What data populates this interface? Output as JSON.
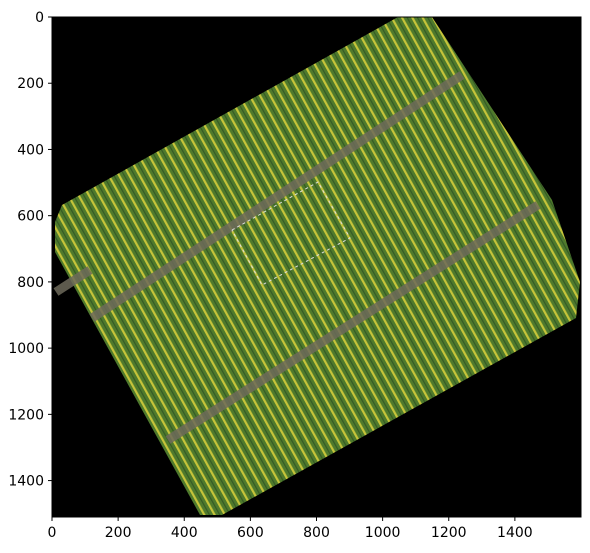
{
  "chart_data": {
    "type": "image",
    "xlim": [
      0,
      1600
    ],
    "ylim": [
      1510,
      0
    ],
    "xticks": [
      0,
      200,
      400,
      600,
      800,
      1000,
      1200,
      1400
    ],
    "yticks": [
      0,
      200,
      400,
      600,
      800,
      1000,
      1200,
      1400
    ]
  }
}
